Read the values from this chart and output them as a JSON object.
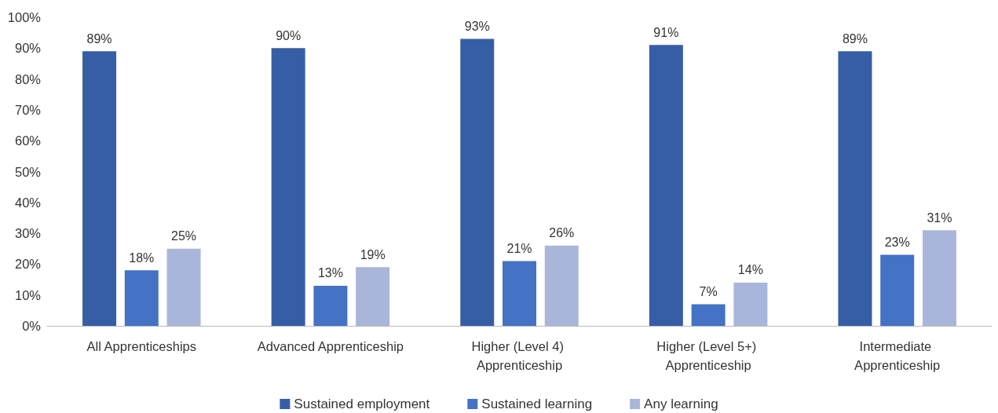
{
  "chart_data": {
    "type": "bar",
    "categories": [
      "All Apprenticeships",
      "Advanced Apprenticeship",
      "Higher (Level 4) Apprenticeship",
      "Higher (Level 5+) Apprenticeship",
      "Intermediate Apprenticeship"
    ],
    "series": [
      {
        "name": "Sustained employment",
        "color": "#365ea5",
        "values": [
          89,
          90,
          93,
          91,
          89
        ],
        "value_labels": [
          "89%",
          "90%",
          "93%",
          "91%",
          "89%"
        ]
      },
      {
        "name": "Sustained learning",
        "color": "#4472c4",
        "values": [
          18,
          13,
          21,
          7,
          23
        ],
        "value_labels": [
          "18%",
          "13%",
          "21%",
          "7%",
          "23%"
        ]
      },
      {
        "name": "Any learning",
        "color": "#a9b6da",
        "values": [
          25,
          19,
          26,
          14,
          31
        ],
        "value_labels": [
          "25%",
          "19%",
          "26%",
          "14%",
          "31%"
        ]
      }
    ],
    "ylim": [
      0,
      100
    ],
    "yticks": [
      {
        "value": 0,
        "label": "0%"
      },
      {
        "value": 10,
        "label": "10%"
      },
      {
        "value": 20,
        "label": "20%"
      },
      {
        "value": 30,
        "label": "30%"
      },
      {
        "value": 40,
        "label": "40%"
      },
      {
        "value": 50,
        "label": "50%"
      },
      {
        "value": 60,
        "label": "60%"
      },
      {
        "value": 70,
        "label": "70%"
      },
      {
        "value": 80,
        "label": "80%"
      },
      {
        "value": 90,
        "label": "90%"
      },
      {
        "value": 100,
        "label": "100%"
      }
    ],
    "grid": false,
    "legend": "bottom"
  }
}
